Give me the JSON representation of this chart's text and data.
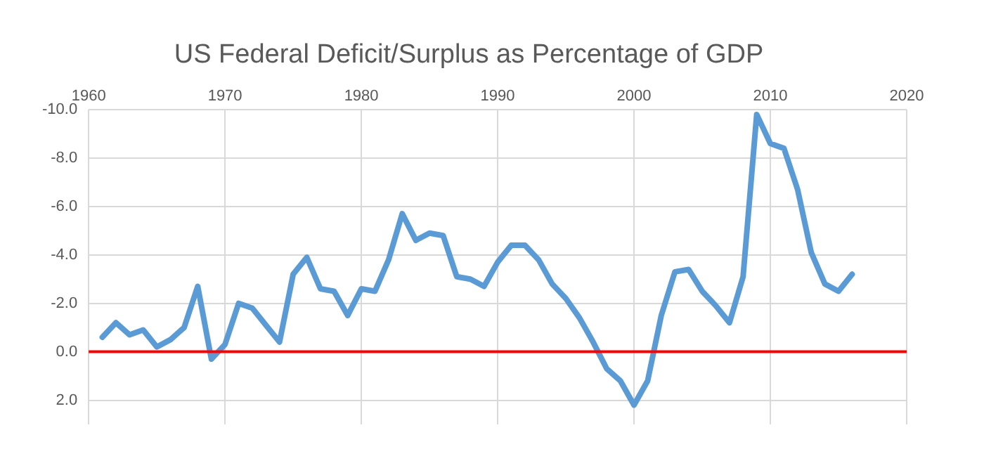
{
  "chart_data": {
    "type": "line",
    "title": "US Federal Deficit/Surplus as Percentage of GDP",
    "x": [
      1961,
      1962,
      1963,
      1964,
      1965,
      1966,
      1967,
      1968,
      1969,
      1970,
      1971,
      1972,
      1973,
      1974,
      1975,
      1976,
      1977,
      1978,
      1979,
      1980,
      1981,
      1982,
      1983,
      1984,
      1985,
      1986,
      1987,
      1988,
      1989,
      1990,
      1991,
      1992,
      1993,
      1994,
      1995,
      1996,
      1997,
      1998,
      1999,
      2000,
      2001,
      2002,
      2003,
      2004,
      2005,
      2006,
      2007,
      2008,
      2009,
      2010,
      2011,
      2012,
      2013,
      2014,
      2015,
      2016
    ],
    "series": [
      {
        "color": "#5b9bd5",
        "values": [
          -0.6,
          -1.2,
          -0.7,
          -0.9,
          -0.2,
          -0.5,
          -1.0,
          -2.7,
          0.3,
          -0.3,
          -2.0,
          -1.8,
          -1.1,
          -0.4,
          -3.2,
          -3.9,
          -2.6,
          -2.5,
          -1.5,
          -2.6,
          -2.5,
          -3.8,
          -5.7,
          -4.6,
          -4.9,
          -4.8,
          -3.1,
          -3.0,
          -2.7,
          -3.7,
          -4.4,
          -4.4,
          -3.8,
          -2.8,
          -2.2,
          -1.4,
          -0.4,
          0.7,
          1.2,
          2.2,
          1.2,
          -1.5,
          -3.3,
          -3.4,
          -2.5,
          -1.9,
          -1.2,
          -3.1,
          -9.8,
          -8.6,
          -8.4,
          -6.7,
          -4.1,
          -2.8,
          -2.5,
          -3.2
        ]
      }
    ],
    "xlim": [
      1960,
      2020
    ],
    "xticks": [
      1960,
      1970,
      1980,
      1990,
      2000,
      2010,
      2020
    ],
    "ylim": [
      3,
      -10
    ],
    "yticks": [
      {
        "value": -10,
        "label": "-10.0"
      },
      {
        "value": -8,
        "label": "-8.0"
      },
      {
        "value": -6,
        "label": "-6.0"
      },
      {
        "value": -4,
        "label": "-4.0"
      },
      {
        "value": -2,
        "label": "-2.0"
      },
      {
        "value": 0,
        "label": "0.0"
      },
      {
        "value": 2,
        "label": "2.0"
      }
    ],
    "ref_lines": [
      {
        "axis": "y",
        "value": 0,
        "color": "#ff0000"
      }
    ],
    "grid": true,
    "legend": false,
    "marker": "none",
    "line_style": "solid"
  }
}
